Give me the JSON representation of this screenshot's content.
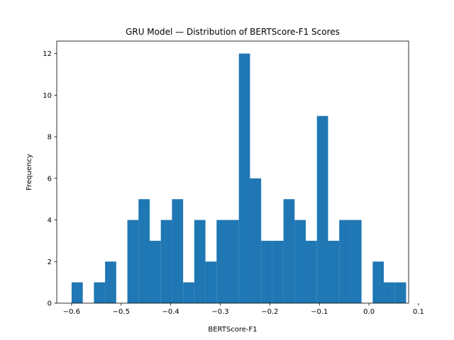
{
  "chart_data": {
    "type": "bar",
    "title": "GRU Model — Distribution of BERTScore-F1 Scores",
    "xlabel": "BERTScore-F1",
    "ylabel": "Frequency",
    "xlim": [
      -0.63,
      0.08
    ],
    "ylim": [
      0,
      12.6
    ],
    "xticks": [
      -0.6,
      -0.5,
      -0.4,
      -0.3,
      -0.2,
      -0.1,
      0.0,
      0.1
    ],
    "xtick_labels": [
      "−0.6",
      "−0.5",
      "−0.4",
      "−0.3",
      "−0.2",
      "−0.1",
      "0.0",
      "0.1"
    ],
    "yticks": [
      0,
      2,
      4,
      6,
      8,
      10,
      12
    ],
    "ytick_labels": [
      "0",
      "2",
      "4",
      "6",
      "8",
      "10",
      "12"
    ],
    "bin_start": -0.6,
    "bin_width": 0.0225,
    "counts": [
      1,
      0,
      1,
      2,
      0,
      4,
      5,
      3,
      4,
      5,
      1,
      4,
      2,
      4,
      4,
      12,
      6,
      3,
      3,
      5,
      4,
      3,
      9,
      3,
      4,
      4,
      0,
      2,
      1,
      1
    ],
    "grid": false,
    "color": "#1f77b4"
  }
}
